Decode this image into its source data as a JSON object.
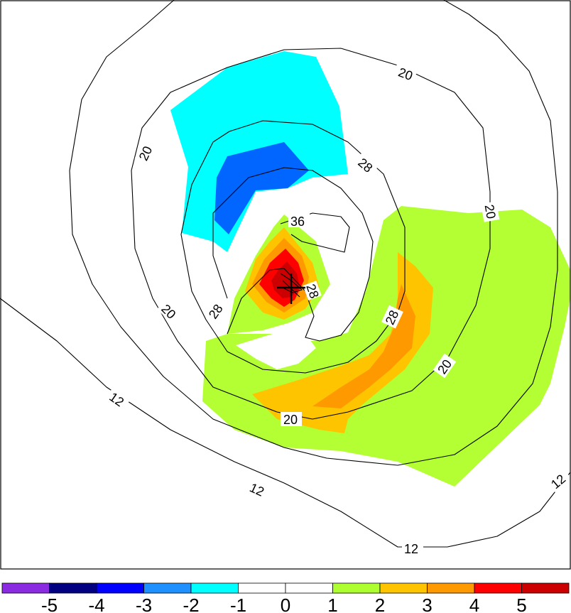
{
  "colorbar": {
    "ticks": [
      "-5",
      "-4",
      "-3",
      "-2",
      "-1",
      "0",
      "1",
      "2",
      "3",
      "4",
      "5"
    ],
    "colors": [
      "#8a2be2",
      "#000080",
      "#0000ff",
      "#1e90ff",
      "#00ffff",
      "#ffffff",
      "#ffffff",
      "#adff2f",
      "#ffc400",
      "#ff9900",
      "#ff0000",
      "#cc0000"
    ]
  },
  "contour_levels": {
    "outer": "12",
    "middle": "20",
    "inner": "28",
    "core": "36"
  },
  "storm_center_icon": "cross-marker-icon",
  "fill_colors": {
    "cyan": "#00ffff",
    "blue": "#0066ff",
    "green": "#b3ff33",
    "yellow": "#ffc400",
    "orange": "#ff9900",
    "red": "#ff0000",
    "darkred": "#cc0000"
  }
}
